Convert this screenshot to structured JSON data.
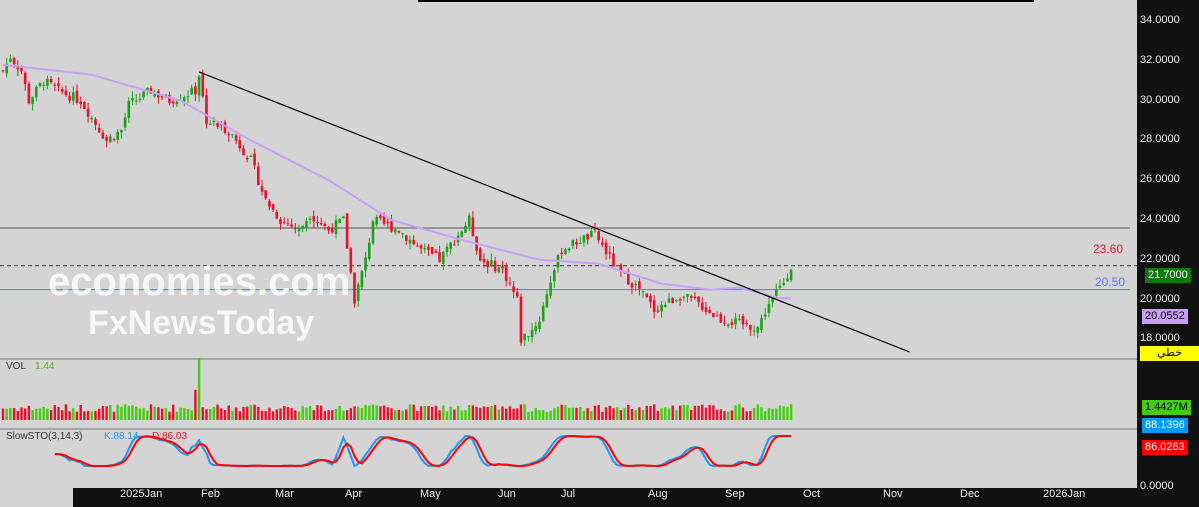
{
  "price_axis": {
    "ticks": [
      "34.0000",
      "32.0000",
      "30.0000",
      "28.0000",
      "26.0000",
      "24.0000",
      "22.0000",
      "20.0000",
      "18.0000"
    ],
    "zero": "0.0000"
  },
  "badges": {
    "last": "21.7000",
    "ma": "20.0552",
    "tool": "خطي",
    "vol": "1.4427M",
    "k": "88.1396",
    "d": "86.0263"
  },
  "levels": {
    "resistance": "23.60",
    "support": "20.50"
  },
  "colors": {
    "up": "#1aa31a",
    "down": "#e8102a",
    "ma": "#c8a0f5",
    "k": "#2196f3",
    "d": "#ff0000",
    "support": "#5577ff"
  },
  "volume": {
    "label": "VOL",
    "value": "1.44"
  },
  "stoch": {
    "label": "SlowSTO(3,14,3)",
    "k": "K:88.14",
    "d": "D:86.03"
  },
  "xaxis": [
    "2025Jan",
    "Feb",
    "Mar",
    "Apr",
    "May",
    "Jun",
    "Jul",
    "Aug",
    "Sep",
    "Oct",
    "Nov",
    "Dec",
    "2026Jan"
  ],
  "watermark": {
    "a": "economies.com",
    "b": "FxNewsToday"
  },
  "chart_data": {
    "type": "candlestick",
    "bars": 213,
    "close_keypoints": [
      [
        0,
        31.5
      ],
      [
        2,
        32.2
      ],
      [
        5,
        31.5
      ],
      [
        7,
        30
      ],
      [
        11,
        31
      ],
      [
        15,
        30.5
      ],
      [
        21,
        30
      ],
      [
        28,
        28
      ],
      [
        32,
        28.5
      ],
      [
        34,
        29.8
      ],
      [
        40,
        30.5
      ],
      [
        45,
        30
      ],
      [
        52,
        30.5
      ],
      [
        53,
        31.3
      ],
      [
        55,
        29
      ],
      [
        61,
        28.5
      ],
      [
        67,
        27
      ],
      [
        71,
        25
      ],
      [
        75,
        24
      ],
      [
        80,
        23.5
      ],
      [
        83,
        24.3
      ],
      [
        88,
        23.5
      ],
      [
        92,
        24
      ],
      [
        95,
        20
      ],
      [
        98,
        22
      ],
      [
        100,
        24
      ],
      [
        107,
        23.5
      ],
      [
        113,
        22.5
      ],
      [
        118,
        22
      ],
      [
        126,
        24
      ],
      [
        129,
        22
      ],
      [
        135,
        21.5
      ],
      [
        139,
        20
      ],
      [
        140,
        18
      ],
      [
        143,
        18.5
      ],
      [
        145,
        19
      ],
      [
        148,
        21
      ],
      [
        151,
        22.5
      ],
      [
        156,
        23
      ],
      [
        160,
        23.3
      ],
      [
        166,
        21.5
      ],
      [
        172,
        20.5
      ],
      [
        176,
        19.5
      ],
      [
        183,
        20.2
      ],
      [
        188,
        19.8
      ],
      [
        194,
        19
      ],
      [
        199,
        18.8
      ],
      [
        204,
        18.6
      ],
      [
        207,
        19.8
      ],
      [
        211,
        20.9
      ],
      [
        213,
        21.7
      ]
    ],
    "ma_keypoints": [
      [
        0,
        31.8
      ],
      [
        24,
        31.3
      ],
      [
        48,
        30
      ],
      [
        67,
        28
      ],
      [
        88,
        26
      ],
      [
        105,
        24
      ],
      [
        124,
        23
      ],
      [
        145,
        22
      ],
      [
        161,
        21.8
      ],
      [
        178,
        20.8
      ],
      [
        191,
        20.5
      ],
      [
        199,
        20.6
      ],
      [
        209,
        20.1
      ],
      [
        213,
        20.05
      ]
    ],
    "trendline": [
      [
        53,
        31.44
      ],
      [
        245,
        17.37
      ]
    ],
    "ylim": [
      17,
      34.5
    ]
  }
}
